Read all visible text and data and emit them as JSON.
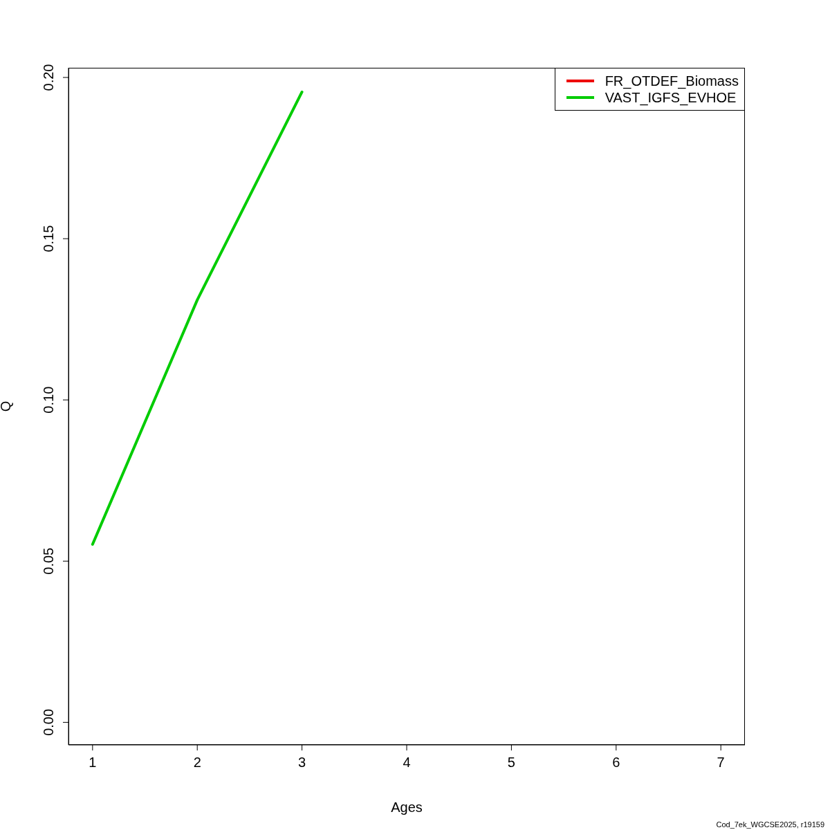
{
  "chart_data": {
    "type": "line",
    "xlabel": "Ages",
    "ylabel": "Q",
    "x": [
      1,
      2,
      3
    ],
    "series": [
      {
        "name": "FR_OTDEF_Biomass",
        "color": "#ee0000",
        "values": [
          null,
          null,
          null
        ]
      },
      {
        "name": "VAST_IGFS_EVHOE",
        "color": "#00cc00",
        "values": [
          0.0552,
          0.131,
          0.1955
        ]
      }
    ],
    "xlim": [
      0.77,
      7.23
    ],
    "xticks": [
      1,
      2,
      3,
      4,
      5,
      6,
      7
    ],
    "ylim": [
      -0.007,
      0.203
    ],
    "yticks": [
      {
        "value": 0,
        "label": "0.00"
      },
      {
        "value": 0.05,
        "label": "0.05"
      },
      {
        "value": 0.1,
        "label": "0.10"
      },
      {
        "value": 0.15,
        "label": "0.15"
      },
      {
        "value": 0.2,
        "label": "0.20"
      }
    ],
    "legend": "top right",
    "marker": "none",
    "line_style": "solid",
    "annotations": [
      "Cod_7ek_WGCSE2025, r19159"
    ]
  }
}
